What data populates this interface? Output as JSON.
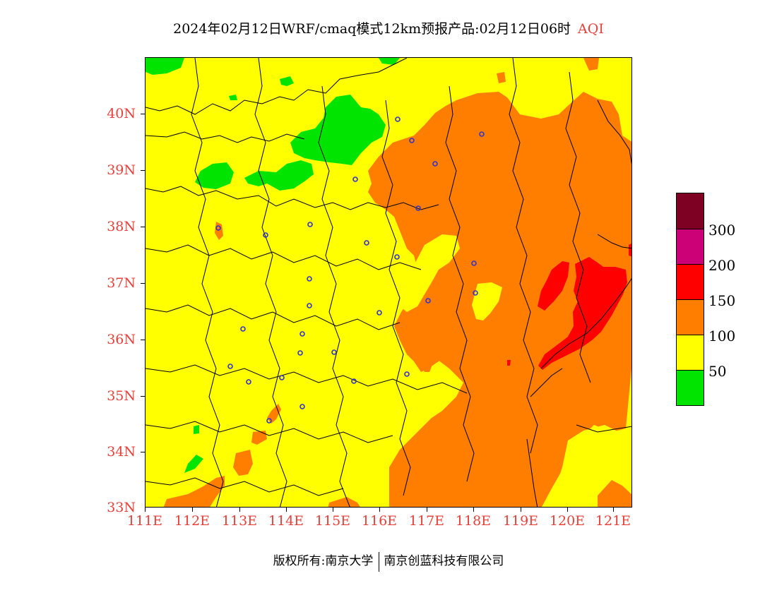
{
  "title": {
    "main": "2024年02月12日WRF/cmaq模式12km预报产品:02月12日06时",
    "variable": "AQI"
  },
  "map": {
    "y_axis_labels": [
      "40N",
      "39N",
      "38N",
      "37N",
      "36N",
      "35N",
      "34N",
      "33N"
    ],
    "x_axis_labels": [
      "111E",
      "112E",
      "113E",
      "114E",
      "115E",
      "116E",
      "117E",
      "118E",
      "119E",
      "120E",
      "121E"
    ],
    "lat_range": [
      33,
      41
    ],
    "lon_range": [
      111,
      121.4
    ],
    "colors": {
      "green": "#00e400",
      "yellow": "#ffff00",
      "orange": "#ff7e00",
      "red": "#ff0000",
      "purple": "#cc0077",
      "maroon": "#7e0023",
      "city_marker": "#3333cc",
      "axis_label": "#e8403a"
    }
  },
  "legend": {
    "labels": [
      "300",
      "200",
      "150",
      "100",
      "50"
    ],
    "swatches": [
      "#7e0023",
      "#cc0077",
      "#ff0000",
      "#ff7e00",
      "#ffff00",
      "#00e400"
    ]
  },
  "footer": {
    "copyright": "版权所有:南京大学",
    "company": "南京创蓝科技有限公司"
  }
}
